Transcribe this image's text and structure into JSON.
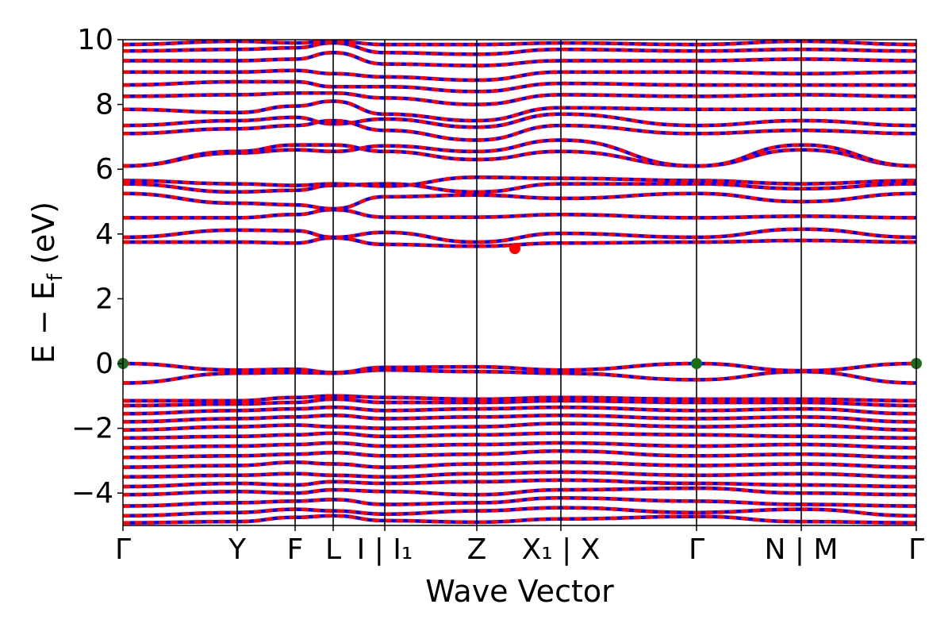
{
  "chart_data": {
    "type": "line",
    "title": "",
    "xlabel": "Wave Vector",
    "ylabel": "E − E_f (eV)",
    "ylabel_main": "E − E",
    "ylabel_sub": "f",
    "ylabel_unit": " (eV)",
    "ylim": [
      -5,
      10
    ],
    "y_ticks": [
      -4,
      -2,
      0,
      2,
      4,
      6,
      8,
      10
    ],
    "y_tick_labels": [
      "−4",
      "−2",
      "0",
      "2",
      "4",
      "6",
      "8",
      "10"
    ],
    "x_range": [
      0,
      1
    ],
    "grid": false,
    "legend": "none",
    "kpoints": [
      {
        "label": "Γ",
        "x": 0.0
      },
      {
        "label": "Y",
        "x": 0.144
      },
      {
        "label": "F",
        "x": 0.217
      },
      {
        "label": "L",
        "x": 0.265
      },
      {
        "label": "I | I₁",
        "x": 0.33
      },
      {
        "label": "Z",
        "x": 0.446
      },
      {
        "label": "X₁ | X",
        "x": 0.552
      },
      {
        "label": "Γ",
        "x": 0.723
      },
      {
        "label": "N | M",
        "x": 0.855
      },
      {
        "label": "Γ",
        "x": 1.0
      }
    ],
    "series_colors": {
      "spin_up": "#ff0000",
      "spin_down": "#0000ff"
    },
    "markers": {
      "vbm": [
        {
          "x": 0.0,
          "y": 0.0
        },
        {
          "x": 0.723,
          "y": 0.0
        },
        {
          "x": 1.0,
          "y": 0.0
        }
      ],
      "cbm": [
        {
          "x": 0.494,
          "y": 3.55
        }
      ],
      "vbm_color": "#1a6e1a",
      "cbm_color": "#ff0000"
    },
    "bands": [
      [
        -4.92,
        -4.88,
        -4.75,
        -4.7,
        -4.85,
        -4.9,
        -4.8,
        -4.72,
        -4.88,
        -4.92
      ],
      [
        -4.7,
        -4.6,
        -4.5,
        -4.55,
        -4.65,
        -4.55,
        -4.45,
        -4.6,
        -4.5,
        -4.7
      ],
      [
        -4.4,
        -4.3,
        -4.25,
        -4.2,
        -4.35,
        -4.3,
        -4.15,
        -4.25,
        -4.35,
        -4.4
      ],
      [
        -4.05,
        -3.95,
        -4.0,
        -3.9,
        -3.95,
        -4.05,
        -3.9,
        -3.85,
        -4.0,
        -4.05
      ],
      [
        -3.8,
        -3.7,
        -3.75,
        -3.65,
        -3.7,
        -3.65,
        -3.6,
        -3.7,
        -3.75,
        -3.8
      ],
      [
        -3.5,
        -3.45,
        -3.4,
        -3.45,
        -3.5,
        -3.4,
        -3.35,
        -3.45,
        -3.4,
        -3.5
      ],
      [
        -3.2,
        -3.15,
        -3.05,
        -3.1,
        -3.2,
        -3.1,
        -3.05,
        -3.15,
        -3.1,
        -3.2
      ],
      [
        -2.9,
        -2.85,
        -2.8,
        -2.75,
        -2.85,
        -2.8,
        -2.7,
        -2.85,
        -2.8,
        -2.9
      ],
      [
        -2.6,
        -2.55,
        -2.5,
        -2.45,
        -2.55,
        -2.5,
        -2.45,
        -2.55,
        -2.5,
        -2.6
      ],
      [
        -2.3,
        -2.25,
        -2.2,
        -2.15,
        -2.25,
        -2.2,
        -2.15,
        -2.2,
        -2.25,
        -2.3
      ],
      [
        -2.05,
        -1.95,
        -1.9,
        -1.95,
        -2.0,
        -1.95,
        -1.85,
        -1.95,
        -1.9,
        -2.05
      ],
      [
        -1.8,
        -1.7,
        -1.65,
        -1.6,
        -1.7,
        -1.65,
        -1.6,
        -1.7,
        -1.65,
        -1.8
      ],
      [
        -1.55,
        -1.45,
        -1.4,
        -1.35,
        -1.45,
        -1.4,
        -1.35,
        -1.45,
        -1.4,
        -1.55
      ],
      [
        -1.3,
        -1.25,
        -1.2,
        -1.1,
        -1.2,
        -1.2,
        -1.15,
        -1.2,
        -1.2,
        -1.3
      ],
      [
        -1.15,
        -1.15,
        -1.05,
        -1.0,
        -1.05,
        -1.1,
        -1.05,
        -1.1,
        -1.1,
        -1.15
      ],
      [
        -0.6,
        -0.3,
        -0.28,
        -0.3,
        -0.2,
        -0.25,
        -0.3,
        -0.5,
        -0.25,
        -0.6
      ],
      [
        0.0,
        -0.2,
        -0.18,
        -0.28,
        -0.12,
        -0.1,
        -0.2,
        0.0,
        -0.22,
        0.0
      ],
      [
        3.75,
        3.75,
        3.72,
        3.88,
        3.68,
        3.62,
        3.72,
        3.75,
        3.8,
        3.75
      ],
      [
        3.9,
        4.12,
        4.1,
        3.9,
        4.05,
        3.75,
        4.02,
        3.9,
        4.15,
        3.9
      ],
      [
        4.5,
        4.5,
        4.6,
        4.75,
        4.52,
        4.52,
        4.6,
        4.5,
        4.55,
        4.5
      ],
      [
        5.25,
        4.95,
        4.9,
        4.78,
        5.15,
        5.2,
        5.1,
        5.25,
        5.0,
        5.25
      ],
      [
        5.55,
        5.3,
        5.35,
        5.5,
        5.55,
        5.3,
        5.55,
        5.55,
        5.4,
        5.55
      ],
      [
        5.65,
        5.55,
        5.5,
        5.55,
        5.48,
        5.75,
        5.72,
        5.65,
        5.55,
        5.65
      ],
      [
        6.1,
        6.55,
        6.75,
        6.75,
        6.55,
        6.3,
        6.55,
        6.1,
        6.6,
        6.1
      ],
      [
        6.1,
        6.5,
        6.6,
        6.55,
        6.72,
        6.55,
        6.9,
        6.1,
        6.75,
        6.1
      ],
      [
        7.1,
        7.25,
        7.35,
        7.5,
        7.2,
        6.9,
        7.35,
        7.1,
        7.2,
        7.1
      ],
      [
        7.35,
        7.5,
        7.6,
        7.4,
        7.55,
        7.3,
        7.7,
        7.35,
        7.5,
        7.35
      ],
      [
        7.85,
        7.75,
        7.95,
        8.1,
        7.7,
        7.5,
        7.9,
        7.85,
        7.85,
        7.85
      ],
      [
        8.25,
        8.3,
        8.35,
        8.35,
        8.2,
        8.0,
        8.3,
        8.25,
        8.3,
        8.25
      ],
      [
        8.6,
        8.7,
        8.7,
        8.55,
        8.55,
        8.4,
        8.65,
        8.6,
        8.6,
        8.6
      ],
      [
        9.0,
        9.0,
        9.05,
        8.95,
        8.85,
        8.75,
        9.0,
        9.0,
        8.95,
        9.0
      ],
      [
        9.35,
        9.35,
        9.4,
        9.6,
        9.25,
        9.2,
        9.35,
        9.35,
        9.4,
        9.35
      ],
      [
        9.65,
        9.7,
        9.75,
        9.9,
        9.6,
        9.55,
        9.7,
        9.65,
        9.7,
        9.65
      ],
      [
        9.85,
        9.95,
        9.9,
        9.95,
        9.85,
        9.85,
        9.9,
        9.85,
        9.95,
        9.85
      ]
    ]
  }
}
